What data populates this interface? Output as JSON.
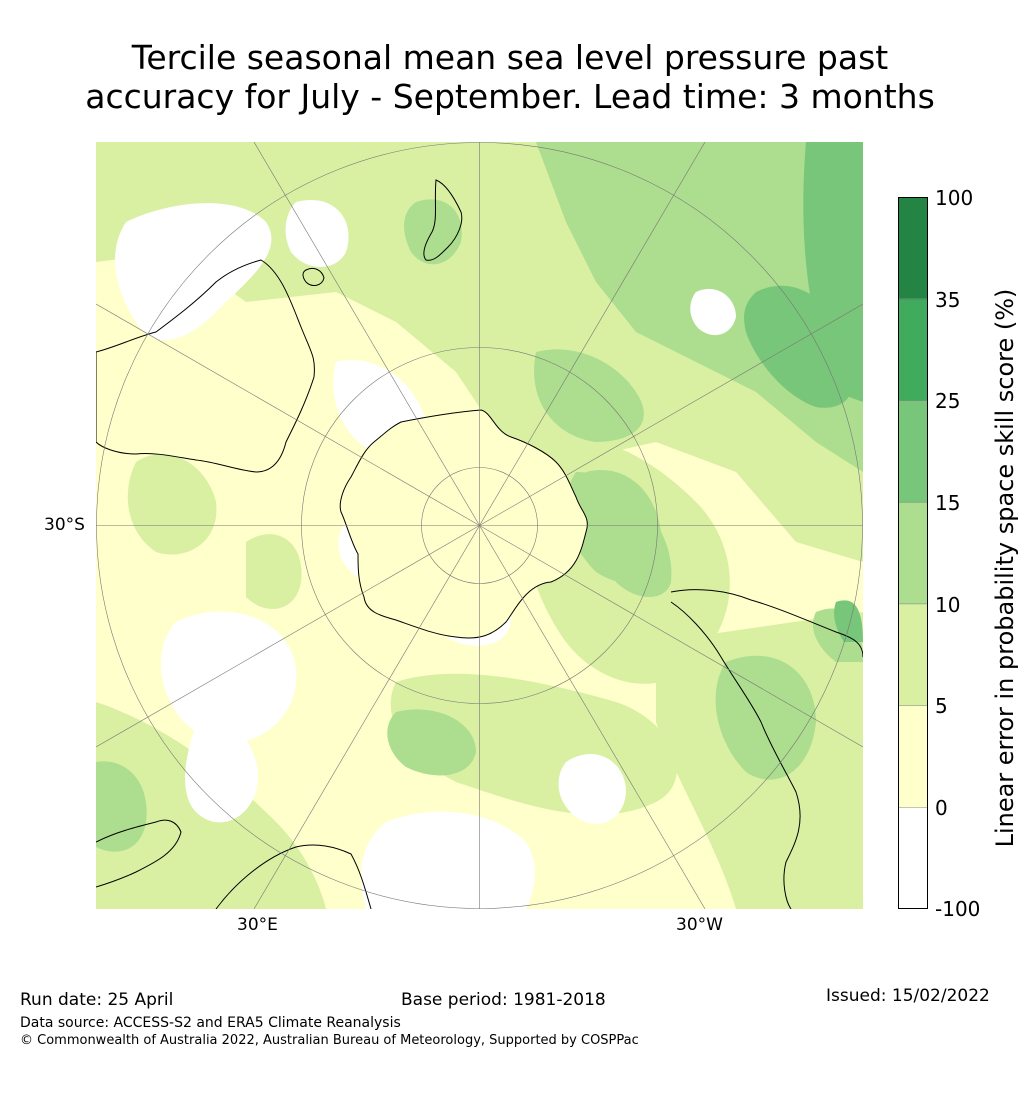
{
  "title_line1": "Tercile seasonal mean sea level pressure past",
  "title_line2": "accuracy for July - September. Lead time: 3 months",
  "map_labels": {
    "lat_label": "30°S",
    "lon_east_label": "30°E",
    "lon_west_label": "30°W"
  },
  "colorbar": {
    "label": "Linear error in probability space skill score (%)",
    "ticks": [
      "-100",
      "0",
      "5",
      "10",
      "15",
      "25",
      "35",
      "100"
    ],
    "bins": [
      {
        "range": "-100 to 0",
        "color": "#ffffff"
      },
      {
        "range": "0 to 5",
        "color": "#ffffcc"
      },
      {
        "range": "5 to 10",
        "color": "#d9f0a3"
      },
      {
        "range": "10 to 15",
        "color": "#addd8e"
      },
      {
        "range": "15 to 25",
        "color": "#78c679"
      },
      {
        "range": "25 to 35",
        "color": "#41ab5d"
      },
      {
        "range": "35 to 100",
        "color": "#238443"
      }
    ]
  },
  "footer": {
    "run_date": "Run date: 25 April",
    "base_period": "Base period: 1981-2018",
    "issued": "Issued: 15/02/2022",
    "data_source": "Data source: ACCESS-S2 and ERA5 Climate Reanalysis",
    "copyright": "© Commonwealth of Australia 2022, Australian Bureau of Meteorology, Supported by COSPPac"
  }
}
